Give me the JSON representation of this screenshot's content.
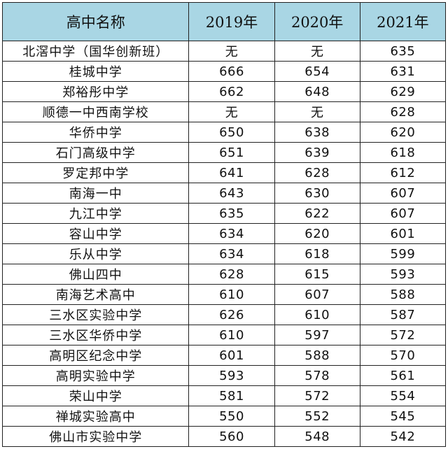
{
  "table": {
    "headers": [
      "高中名称",
      "2019年",
      "2020年",
      "2021年"
    ],
    "header_bg": "#a9d6e4",
    "rows": [
      [
        "北滘中学（国华创新班）",
        "无",
        "无",
        "635"
      ],
      [
        "桂城中学",
        "666",
        "654",
        "631"
      ],
      [
        "郑裕彤中学",
        "662",
        "648",
        "629"
      ],
      [
        "顺德一中西南学校",
        "无",
        "无",
        "628"
      ],
      [
        "华侨中学",
        "650",
        "638",
        "620"
      ],
      [
        "石门高级中学",
        "651",
        "639",
        "618"
      ],
      [
        "罗定邦中学",
        "641",
        "628",
        "612"
      ],
      [
        "南海一中",
        "643",
        "630",
        "607"
      ],
      [
        "九江中学",
        "635",
        "622",
        "607"
      ],
      [
        "容山中学",
        "634",
        "620",
        "601"
      ],
      [
        "乐从中学",
        "634",
        "618",
        "599"
      ],
      [
        "佛山四中",
        "628",
        "615",
        "593"
      ],
      [
        "南海艺术高中",
        "610",
        "607",
        "588"
      ],
      [
        "三水区实验中学",
        "626",
        "610",
        "587"
      ],
      [
        "三水区华侨中学",
        "610",
        "597",
        "572"
      ],
      [
        "高明区纪念中学",
        "601",
        "588",
        "570"
      ],
      [
        "高明实验中学",
        "593",
        "578",
        "561"
      ],
      [
        "荣山中学",
        "581",
        "572",
        "554"
      ],
      [
        "禅城实验高中",
        "550",
        "552",
        "545"
      ],
      [
        "佛山市实验中学",
        "560",
        "548",
        "542"
      ]
    ]
  }
}
